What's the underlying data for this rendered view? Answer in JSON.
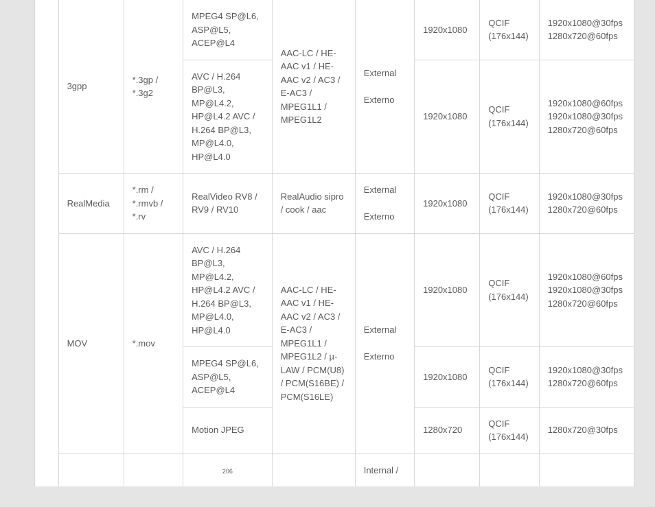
{
  "page_number": "206",
  "colors": {
    "page_bg": "#e6e5e5",
    "cell_bg": "#ffffff",
    "border": "#d8d8d6",
    "text": "#5a5a5a"
  },
  "typography": {
    "font_family": "Arial, Helvetica, sans-serif",
    "cell_fontsize": 13,
    "pagenum_fontsize": 9
  },
  "layout": {
    "type": "table",
    "columns": [
      "blank",
      "container",
      "extension",
      "video_codec",
      "audio_codec",
      "subtitle",
      "max_res",
      "min_res",
      "fps"
    ],
    "col_widths_pct": [
      4,
      11,
      10,
      15,
      14,
      10,
      11,
      10,
      16
    ]
  },
  "rows": {
    "threegpp": {
      "container": "3gpp",
      "extension": "*.3gp / *.3g2",
      "audio_codec": "AAC-LC / HE-AAC v1 / HE-AAC v2 / AC3 / E-AC3 / MPEG1L1 / MPEG1L2",
      "subtitle": "External\n\nExterno",
      "sub": [
        {
          "video_codec": "MPEG4 SP@L6, ASP@L5, ACEP@L4",
          "max_res": "1920x1080",
          "min_res": "QCIF (176x144)",
          "fps": "1920x1080@30fps 1280x720@60fps"
        },
        {
          "video_codec": "AVC / H.264 BP@L3, MP@L4.2, HP@L4.2 AVC / H.264 BP@L3, MP@L4.0, HP@L4.0",
          "max_res": "1920x1080",
          "min_res": "QCIF (176x144)",
          "fps": "1920x1080@60fps 1920x1080@30fps 1280x720@60fps"
        }
      ]
    },
    "realmedia": {
      "container": "RealMedia",
      "extension": "*.rm / *.rmvb / *.rv",
      "video_codec": "RealVideo RV8 / RV9 / RV10",
      "audio_codec": "RealAudio sipro / cook / aac",
      "subtitle": "External\n\nExterno",
      "max_res": "1920x1080",
      "min_res": "QCIF (176x144)",
      "fps": "1920x1080@30fps 1280x720@60fps"
    },
    "mov": {
      "container": "MOV",
      "extension": "*.mov",
      "audio_codec": "AAC-LC / HE-AAC v1 / HE-AAC v2 / AC3 / E-AC3 / MPEG1L1 / MPEG1L2 / µ-LAW / PCM(U8) / PCM(S16BE) / PCM(S16LE)",
      "subtitle": "External\n\nExterno",
      "sub": [
        {
          "video_codec": "AVC / H.264 BP@L3, MP@L4.2, HP@L4.2 AVC / H.264 BP@L3, MP@L4.0, HP@L4.0",
          "max_res": "1920x1080",
          "min_res": "QCIF (176x144)",
          "fps": "1920x1080@60fps 1920x1080@30fps 1280x720@60fps"
        },
        {
          "video_codec": "MPEG4 SP@L6, ASP@L5, ACEP@L4",
          "max_res": "1920x1080",
          "min_res": "QCIF (176x144)",
          "fps": "1920x1080@30fps 1280x720@60fps"
        },
        {
          "video_codec": "Motion JPEG",
          "max_res": "1280x720",
          "min_res": "QCIF (176x144)",
          "fps": "1280x720@30fps"
        }
      ]
    },
    "next_partial": {
      "subtitle": "Internal /"
    }
  }
}
